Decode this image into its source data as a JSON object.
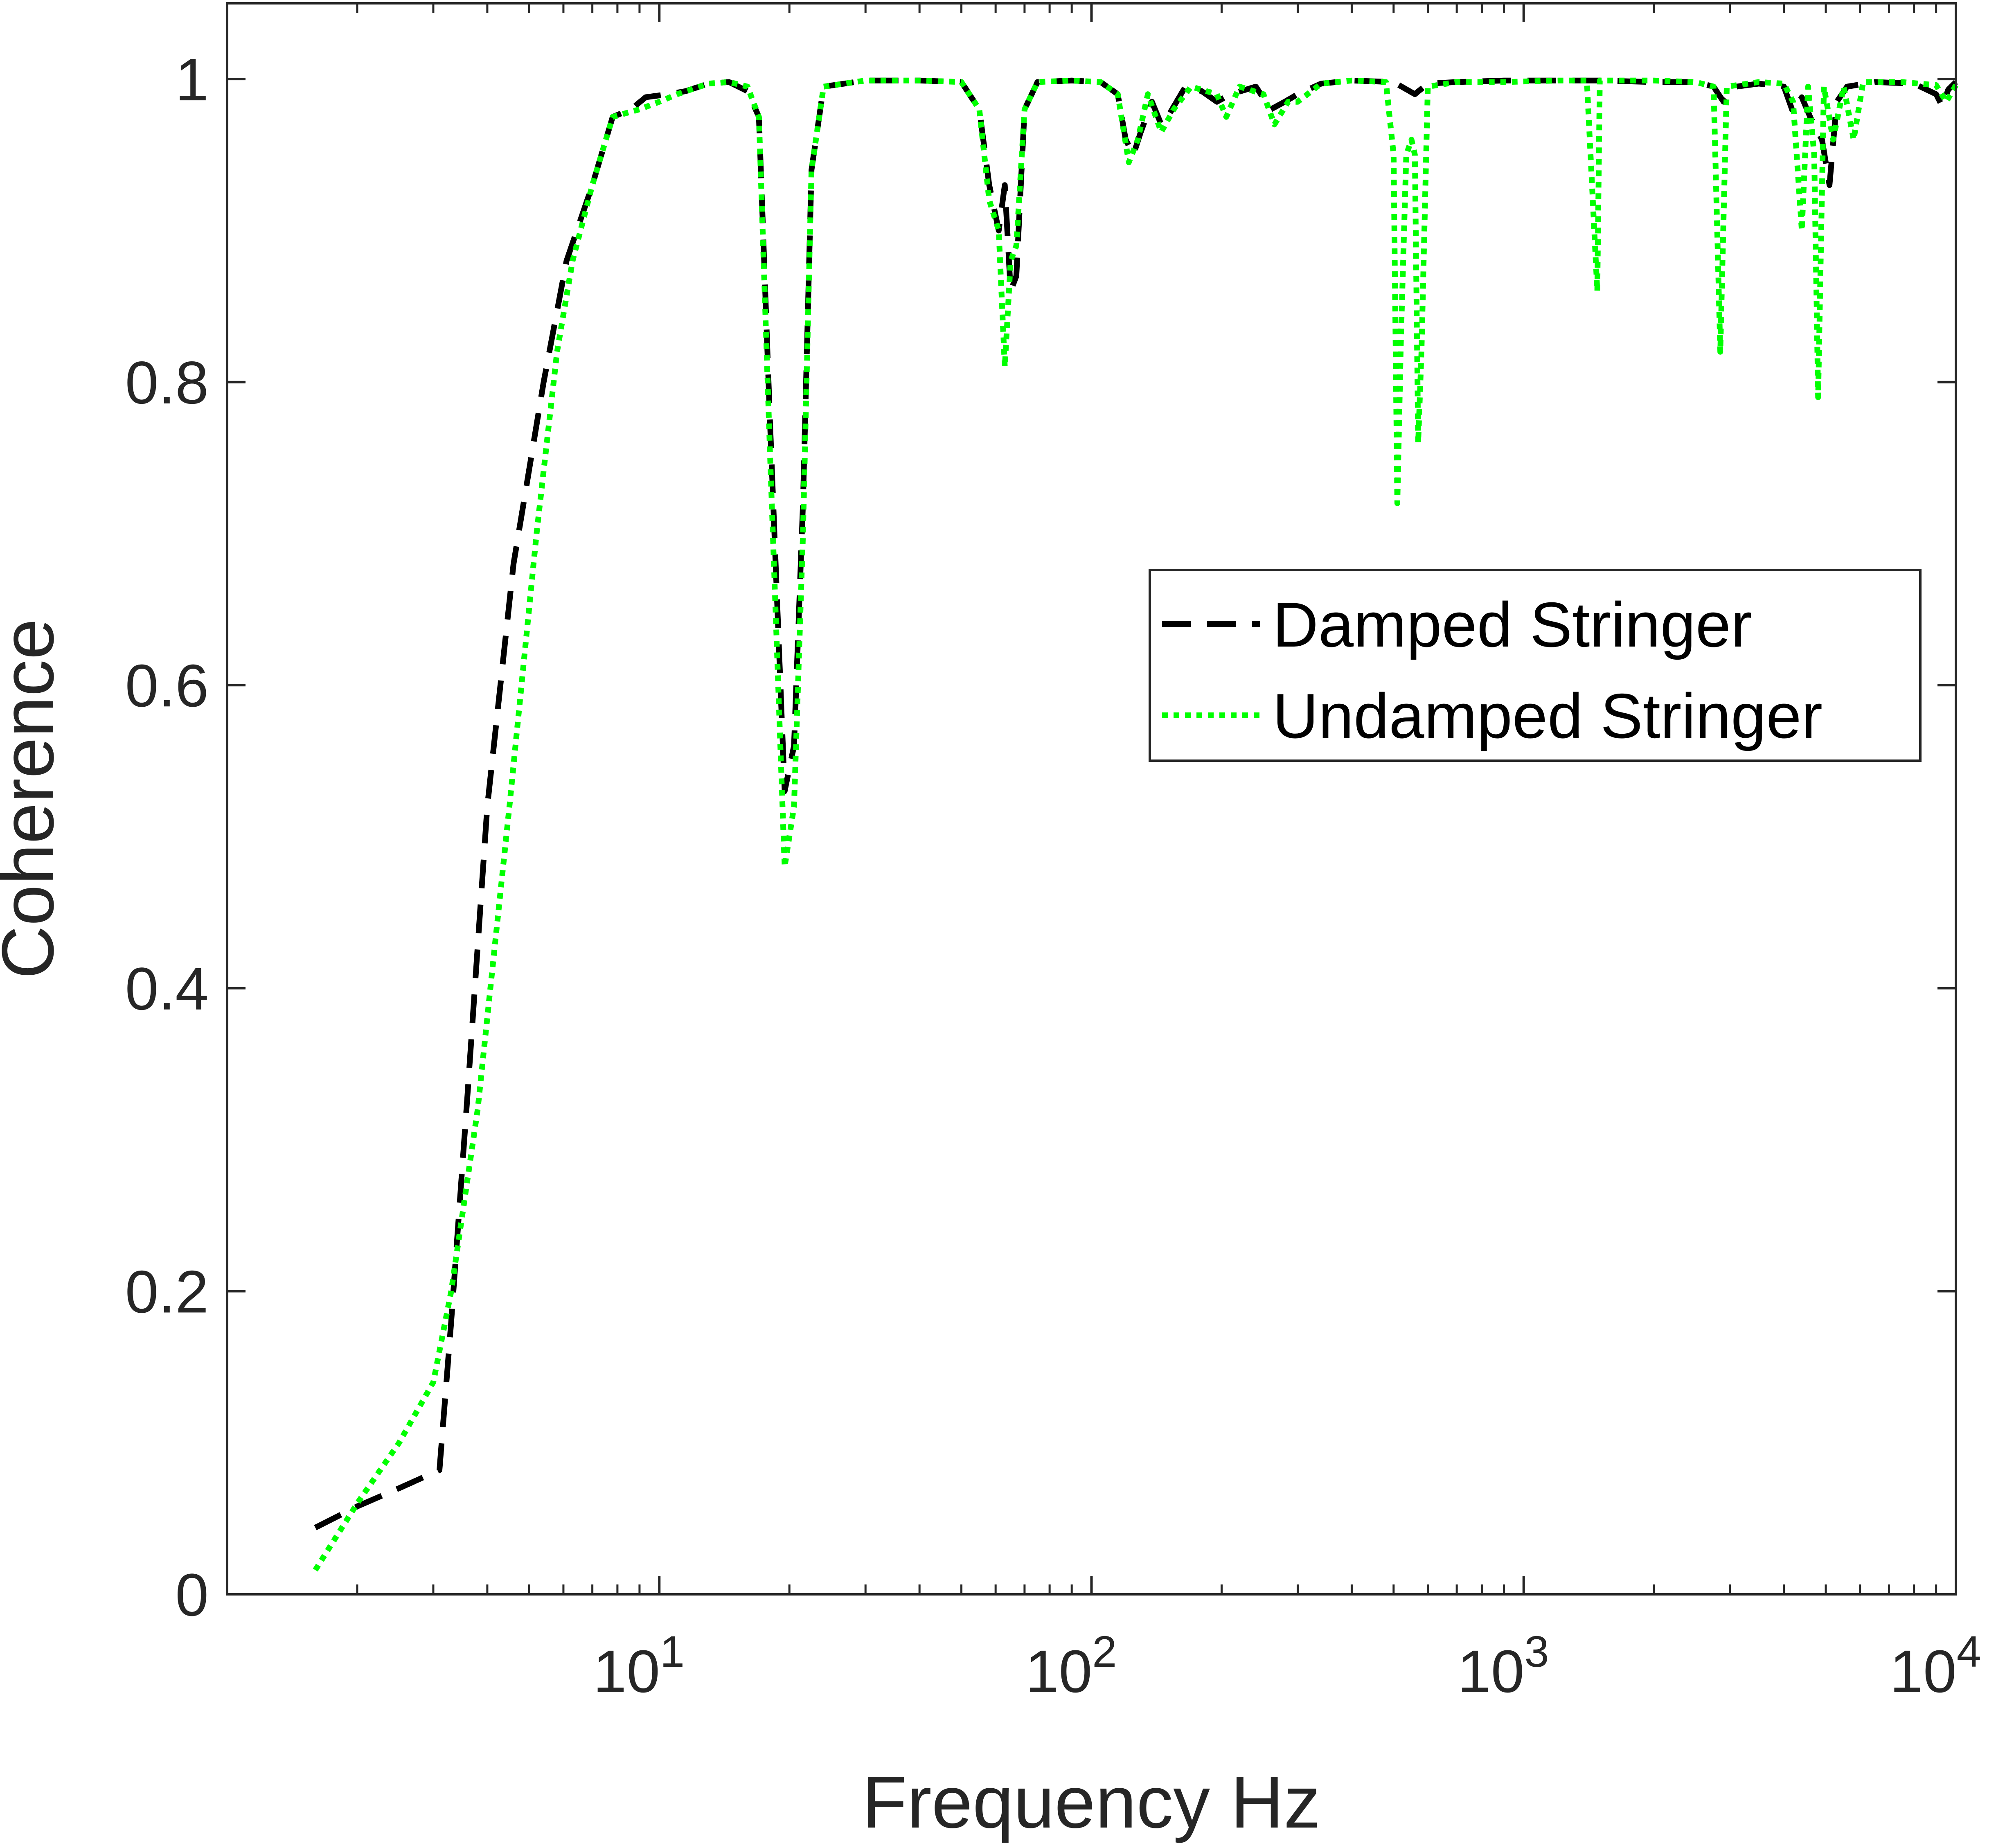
{
  "chart_data": {
    "type": "line",
    "title": "",
    "xlabel": "Frequency Hz",
    "ylabel": "Coherence",
    "xscale": "log",
    "xlim": [
      1,
      10000
    ],
    "ylim": [
      0,
      1.05
    ],
    "grid": false,
    "legend_position": "center-right",
    "x_ticks": [
      {
        "value": 10,
        "base": "10",
        "exp": "1"
      },
      {
        "value": 100,
        "base": "10",
        "exp": "2"
      },
      {
        "value": 1000,
        "base": "10",
        "exp": "3"
      },
      {
        "value": 10000,
        "base": "10",
        "exp": "4"
      }
    ],
    "y_ticks": [
      {
        "value": 0,
        "label": "0"
      },
      {
        "value": 0.2,
        "label": "0.2"
      },
      {
        "value": 0.4,
        "label": "0.4"
      },
      {
        "value": 0.6,
        "label": "0.6"
      },
      {
        "value": 0.8,
        "label": "0.8"
      },
      {
        "value": 1,
        "label": "1"
      }
    ],
    "series": [
      {
        "name": "Damped Stringer",
        "color": "#000000",
        "dash": "dashed",
        "points": [
          [
            1.6,
            0.044
          ],
          [
            2.0,
            0.058
          ],
          [
            2.5,
            0.07
          ],
          [
            3.1,
            0.082
          ],
          [
            3.3,
            0.18
          ],
          [
            3.6,
            0.33
          ],
          [
            4.0,
            0.52
          ],
          [
            4.6,
            0.68
          ],
          [
            5.4,
            0.8
          ],
          [
            6.1,
            0.88
          ],
          [
            7.0,
            0.93
          ],
          [
            7.8,
            0.975
          ],
          [
            8.6,
            0.98
          ],
          [
            9.3,
            0.988
          ],
          [
            10.5,
            0.99
          ],
          [
            11.5,
            0.992
          ],
          [
            13,
            0.997
          ],
          [
            14.5,
            0.998
          ],
          [
            16,
            0.992
          ],
          [
            17,
            0.975
          ],
          [
            18,
            0.78
          ],
          [
            19.5,
            0.53
          ],
          [
            20.5,
            0.56
          ],
          [
            21.5,
            0.72
          ],
          [
            22.5,
            0.94
          ],
          [
            24,
            0.995
          ],
          [
            30,
            0.999
          ],
          [
            40,
            0.999
          ],
          [
            50,
            0.998
          ],
          [
            55,
            0.98
          ],
          [
            58,
            0.93
          ],
          [
            61,
            0.9
          ],
          [
            63,
            0.93
          ],
          [
            65,
            0.86
          ],
          [
            67,
            0.87
          ],
          [
            70,
            0.98
          ],
          [
            75,
            0.998
          ],
          [
            90,
            0.999
          ],
          [
            105,
            0.998
          ],
          [
            115,
            0.99
          ],
          [
            120,
            0.96
          ],
          [
            125,
            0.95
          ],
          [
            130,
            0.965
          ],
          [
            138,
            0.985
          ],
          [
            145,
            0.97
          ],
          [
            150,
            0.975
          ],
          [
            165,
            0.995
          ],
          [
            180,
            0.992
          ],
          [
            195,
            0.985
          ],
          [
            210,
            0.99
          ],
          [
            240,
            0.995
          ],
          [
            260,
            0.98
          ],
          [
            280,
            0.985
          ],
          [
            300,
            0.99
          ],
          [
            340,
            0.997
          ],
          [
            400,
            0.999
          ],
          [
            500,
            0.998
          ],
          [
            560,
            0.99
          ],
          [
            600,
            0.997
          ],
          [
            700,
            0.998
          ],
          [
            900,
            0.999
          ],
          [
            1200,
            0.999
          ],
          [
            1500,
            0.999
          ],
          [
            2000,
            0.998
          ],
          [
            2500,
            0.998
          ],
          [
            2750,
            0.995
          ],
          [
            2900,
            0.985
          ],
          [
            3100,
            0.995
          ],
          [
            3500,
            0.997
          ],
          [
            4000,
            0.995
          ],
          [
            4200,
            0.978
          ],
          [
            4400,
            0.988
          ],
          [
            4600,
            0.975
          ],
          [
            4900,
            0.96
          ],
          [
            5100,
            0.93
          ],
          [
            5300,
            0.985
          ],
          [
            5600,
            0.995
          ],
          [
            6500,
            0.998
          ],
          [
            8000,
            0.997
          ],
          [
            9000,
            0.99
          ],
          [
            9300,
            0.982
          ],
          [
            9600,
            0.993
          ],
          [
            10000,
            0.998
          ]
        ]
      },
      {
        "name": "Undamped Stringer",
        "color": "#00ff00",
        "dash": "dotted",
        "points": [
          [
            1.6,
            0.016
          ],
          [
            2.0,
            0.06
          ],
          [
            2.5,
            0.1
          ],
          [
            3.0,
            0.14
          ],
          [
            3.3,
            0.2
          ],
          [
            3.8,
            0.32
          ],
          [
            4.5,
            0.52
          ],
          [
            5.2,
            0.7
          ],
          [
            5.8,
            0.82
          ],
          [
            6.3,
            0.88
          ],
          [
            7.0,
            0.93
          ],
          [
            7.8,
            0.975
          ],
          [
            9.0,
            0.98
          ],
          [
            10,
            0.985
          ],
          [
            11,
            0.99
          ],
          [
            13,
            0.997
          ],
          [
            14.5,
            0.998
          ],
          [
            16,
            0.995
          ],
          [
            17,
            0.975
          ],
          [
            18,
            0.76
          ],
          [
            19.5,
            0.48
          ],
          [
            20.5,
            0.52
          ],
          [
            21.5,
            0.7
          ],
          [
            22.5,
            0.94
          ],
          [
            24,
            0.995
          ],
          [
            30,
            0.999
          ],
          [
            40,
            0.999
          ],
          [
            50,
            0.998
          ],
          [
            55,
            0.98
          ],
          [
            58,
            0.92
          ],
          [
            61,
            0.9
          ],
          [
            63,
            0.81
          ],
          [
            65,
            0.88
          ],
          [
            67,
            0.89
          ],
          [
            70,
            0.98
          ],
          [
            75,
            0.998
          ],
          [
            90,
            0.999
          ],
          [
            105,
            0.998
          ],
          [
            115,
            0.99
          ],
          [
            122,
            0.945
          ],
          [
            128,
            0.96
          ],
          [
            135,
            0.99
          ],
          [
            145,
            0.965
          ],
          [
            155,
            0.98
          ],
          [
            170,
            0.995
          ],
          [
            195,
            0.99
          ],
          [
            205,
            0.975
          ],
          [
            220,
            0.995
          ],
          [
            250,
            0.99
          ],
          [
            265,
            0.97
          ],
          [
            285,
            0.985
          ],
          [
            300,
            0.985
          ],
          [
            340,
            0.997
          ],
          [
            400,
            0.999
          ],
          [
            480,
            0.998
          ],
          [
            500,
            0.95
          ],
          [
            510,
            0.72
          ],
          [
            520,
            0.83
          ],
          [
            535,
            0.95
          ],
          [
            550,
            0.96
          ],
          [
            560,
            0.95
          ],
          [
            570,
            0.76
          ],
          [
            580,
            0.82
          ],
          [
            600,
            0.995
          ],
          [
            700,
            0.998
          ],
          [
            900,
            0.998
          ],
          [
            1200,
            0.999
          ],
          [
            1400,
            0.999
          ],
          [
            1480,
            0.86
          ],
          [
            1500,
            0.999
          ],
          [
            2000,
            0.999
          ],
          [
            2500,
            0.998
          ],
          [
            2750,
            0.995
          ],
          [
            2850,
            0.82
          ],
          [
            2950,
            0.995
          ],
          [
            3500,
            0.998
          ],
          [
            4000,
            0.997
          ],
          [
            4200,
            0.985
          ],
          [
            4400,
            0.9
          ],
          [
            4550,
            0.995
          ],
          [
            4700,
            0.95
          ],
          [
            4800,
            0.79
          ],
          [
            4950,
            0.995
          ],
          [
            5200,
            0.96
          ],
          [
            5500,
            0.995
          ],
          [
            5800,
            0.96
          ],
          [
            6100,
            0.998
          ],
          [
            7500,
            0.998
          ],
          [
            9000,
            0.996
          ],
          [
            9500,
            0.985
          ],
          [
            10000,
            0.996
          ]
        ]
      }
    ]
  }
}
